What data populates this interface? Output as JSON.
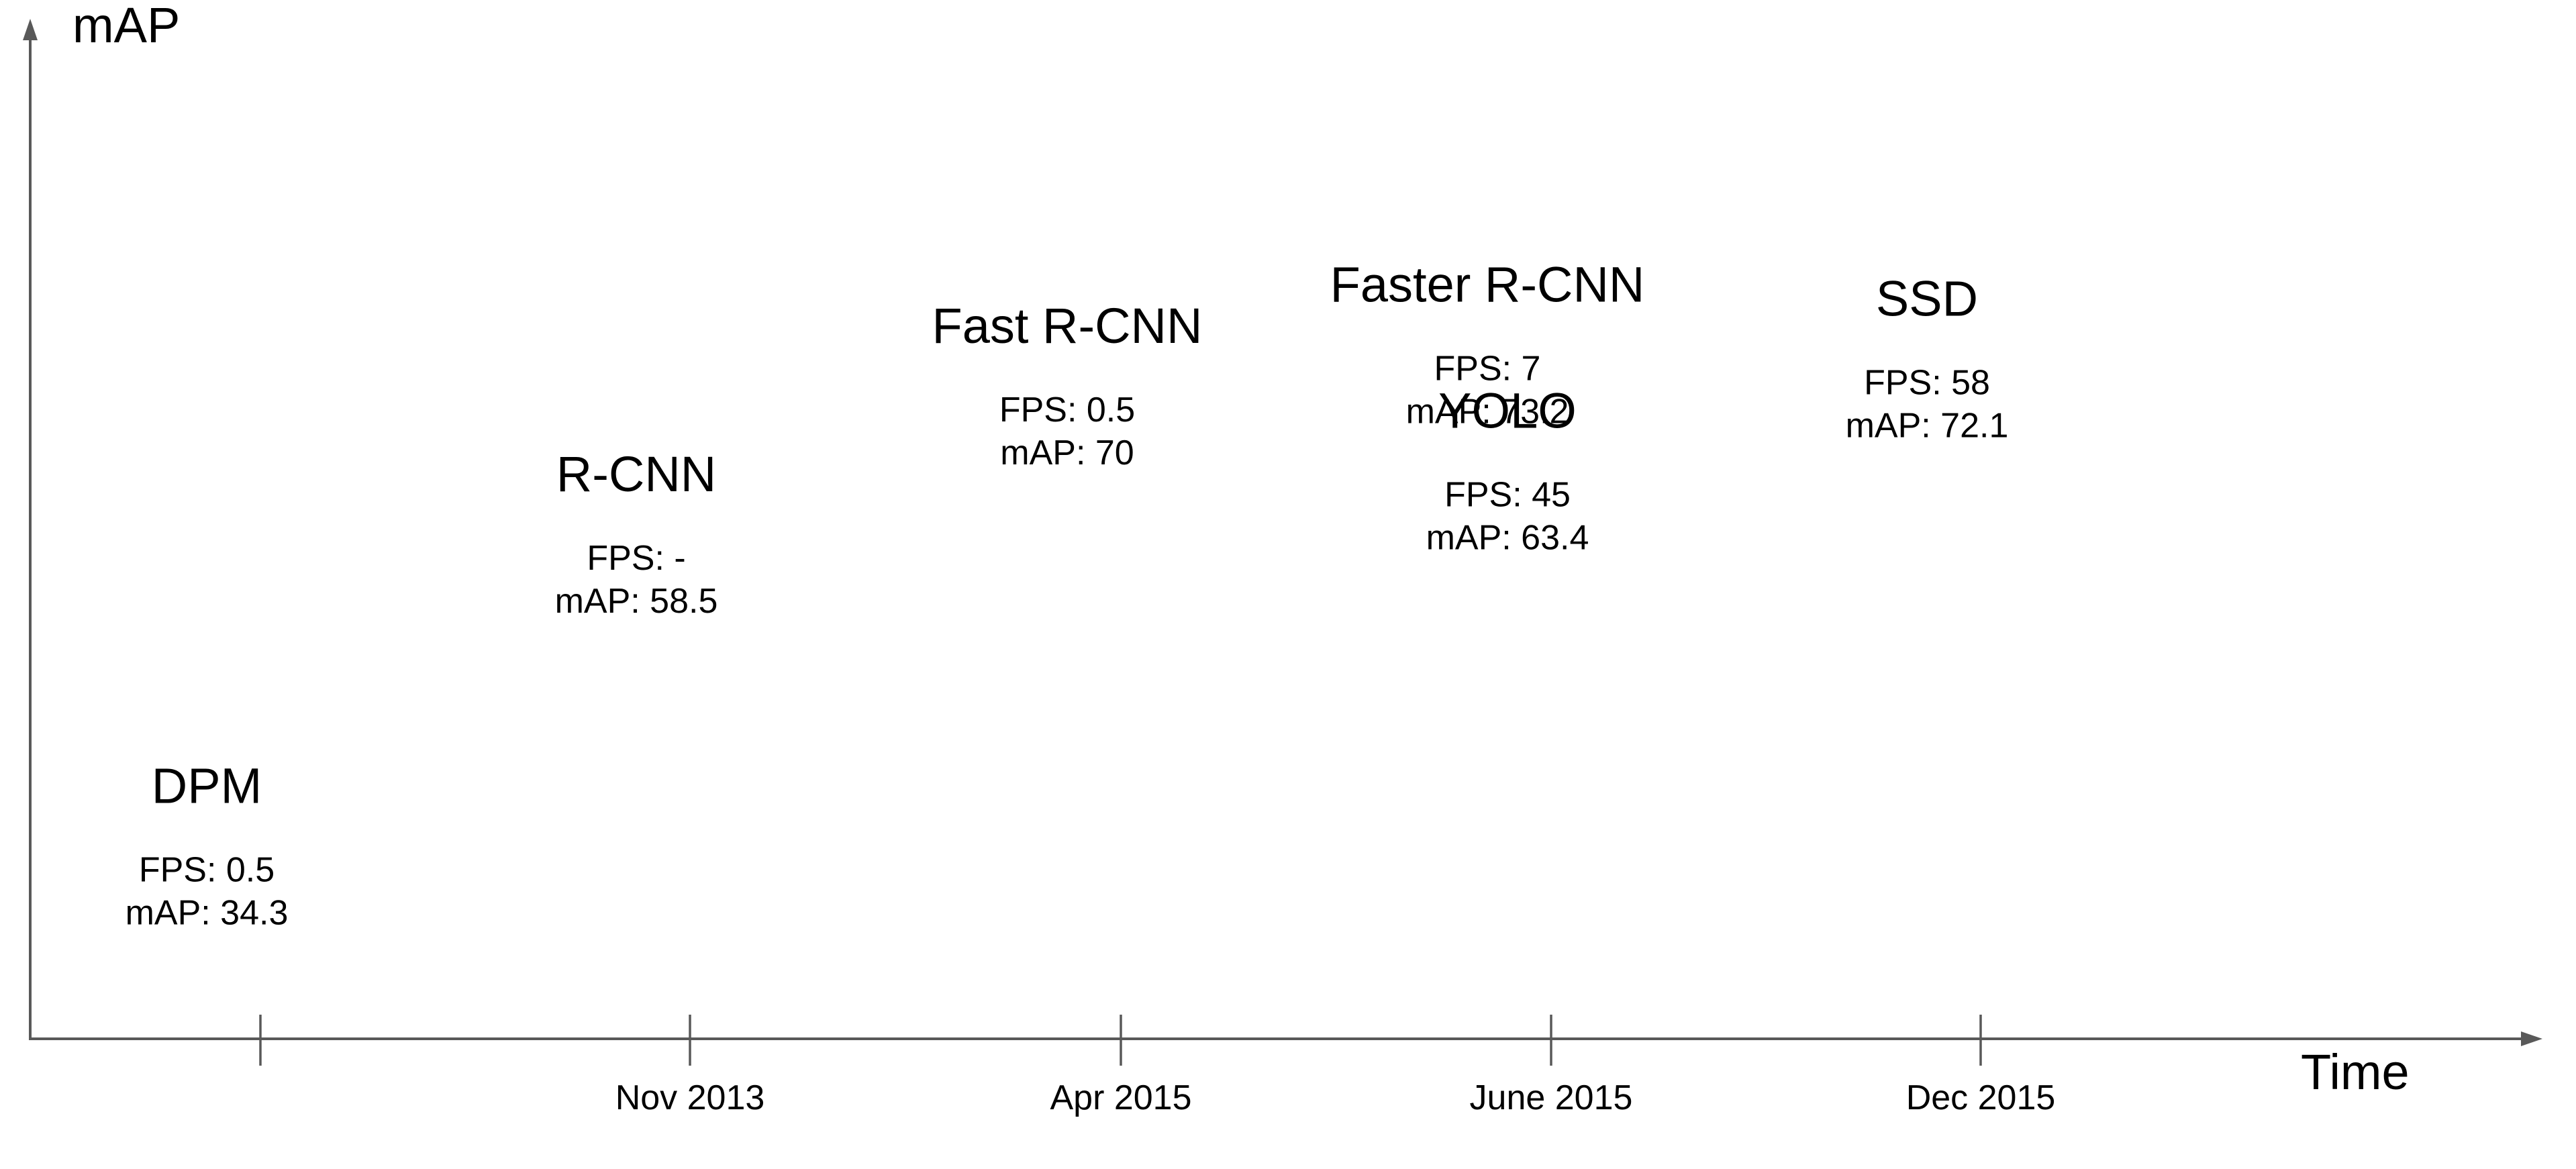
{
  "chart_data": {
    "type": "scatter",
    "title": "",
    "xlabel": "Time",
    "ylabel": "mAP",
    "x_ticks": [
      "",
      "Nov 2013",
      "Apr 2015",
      "June 2015",
      "Dec 2015"
    ],
    "grid": false,
    "legend": "none",
    "axis_color": "#595959",
    "text_color": "#000000",
    "series": [
      {
        "name": "DPM",
        "time": "",
        "fps_label": "FPS: 0.5",
        "map_label": "mAP: 34.3",
        "fps": 0.5,
        "map": 34.3
      },
      {
        "name": "R-CNN",
        "time": "Nov 2013",
        "fps_label": "FPS: -",
        "map_label": "mAP: 58.5",
        "fps": null,
        "map": 58.5
      },
      {
        "name": "Fast R-CNN",
        "time": "Apr 2015",
        "fps_label": "FPS: 0.5",
        "map_label": "mAP: 70",
        "fps": 0.5,
        "map": 70
      },
      {
        "name": "Faster R-CNN",
        "time": "June 2015",
        "fps_label": "FPS: 7",
        "map_label": "mAP: 73.2",
        "fps": 7,
        "map": 73.2
      },
      {
        "name": "YOLO",
        "time": "June 2015",
        "fps_label": "FPS: 45",
        "map_label": "mAP: 63.4",
        "fps": 45,
        "map": 63.4
      },
      {
        "name": "SSD",
        "time": "Dec 2015",
        "fps_label": "FPS: 58",
        "map_label": "mAP: 72.1",
        "fps": 58,
        "map": 72.1
      }
    ]
  }
}
